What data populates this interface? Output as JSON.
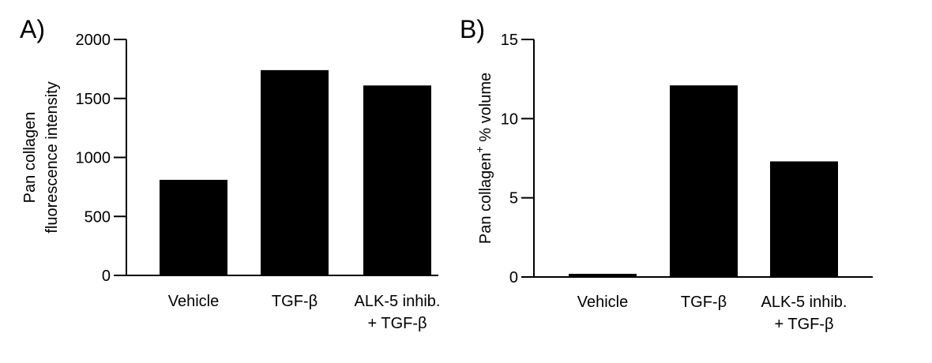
{
  "chart_data": [
    {
      "type": "bar",
      "panel_label": "A)",
      "categories": [
        [
          "Vehicle"
        ],
        [
          "TGF-β"
        ],
        [
          "ALK-5 inhib.",
          "+ TGF-β"
        ]
      ],
      "values": [
        810,
        1740,
        1610
      ],
      "ylabel": [
        "Pan collagen",
        "fluorescence intensity"
      ],
      "yticks": [
        0,
        500,
        1000,
        1500,
        2000
      ],
      "ylim": [
        0,
        2000
      ],
      "bar_color": "#000000",
      "grid": false
    },
    {
      "type": "bar",
      "panel_label": "B)",
      "categories": [
        [
          "Vehicle"
        ],
        [
          "TGF-β"
        ],
        [
          "ALK-5 inhib.",
          "+ TGF-β"
        ]
      ],
      "values": [
        0.2,
        12.1,
        7.3
      ],
      "ylabel": [
        "Pan collagen",
        "+",
        " % volume"
      ],
      "yticks": [
        0,
        5,
        10,
        15
      ],
      "ylim": [
        0,
        15
      ],
      "bar_color": "#000000",
      "grid": false
    }
  ]
}
